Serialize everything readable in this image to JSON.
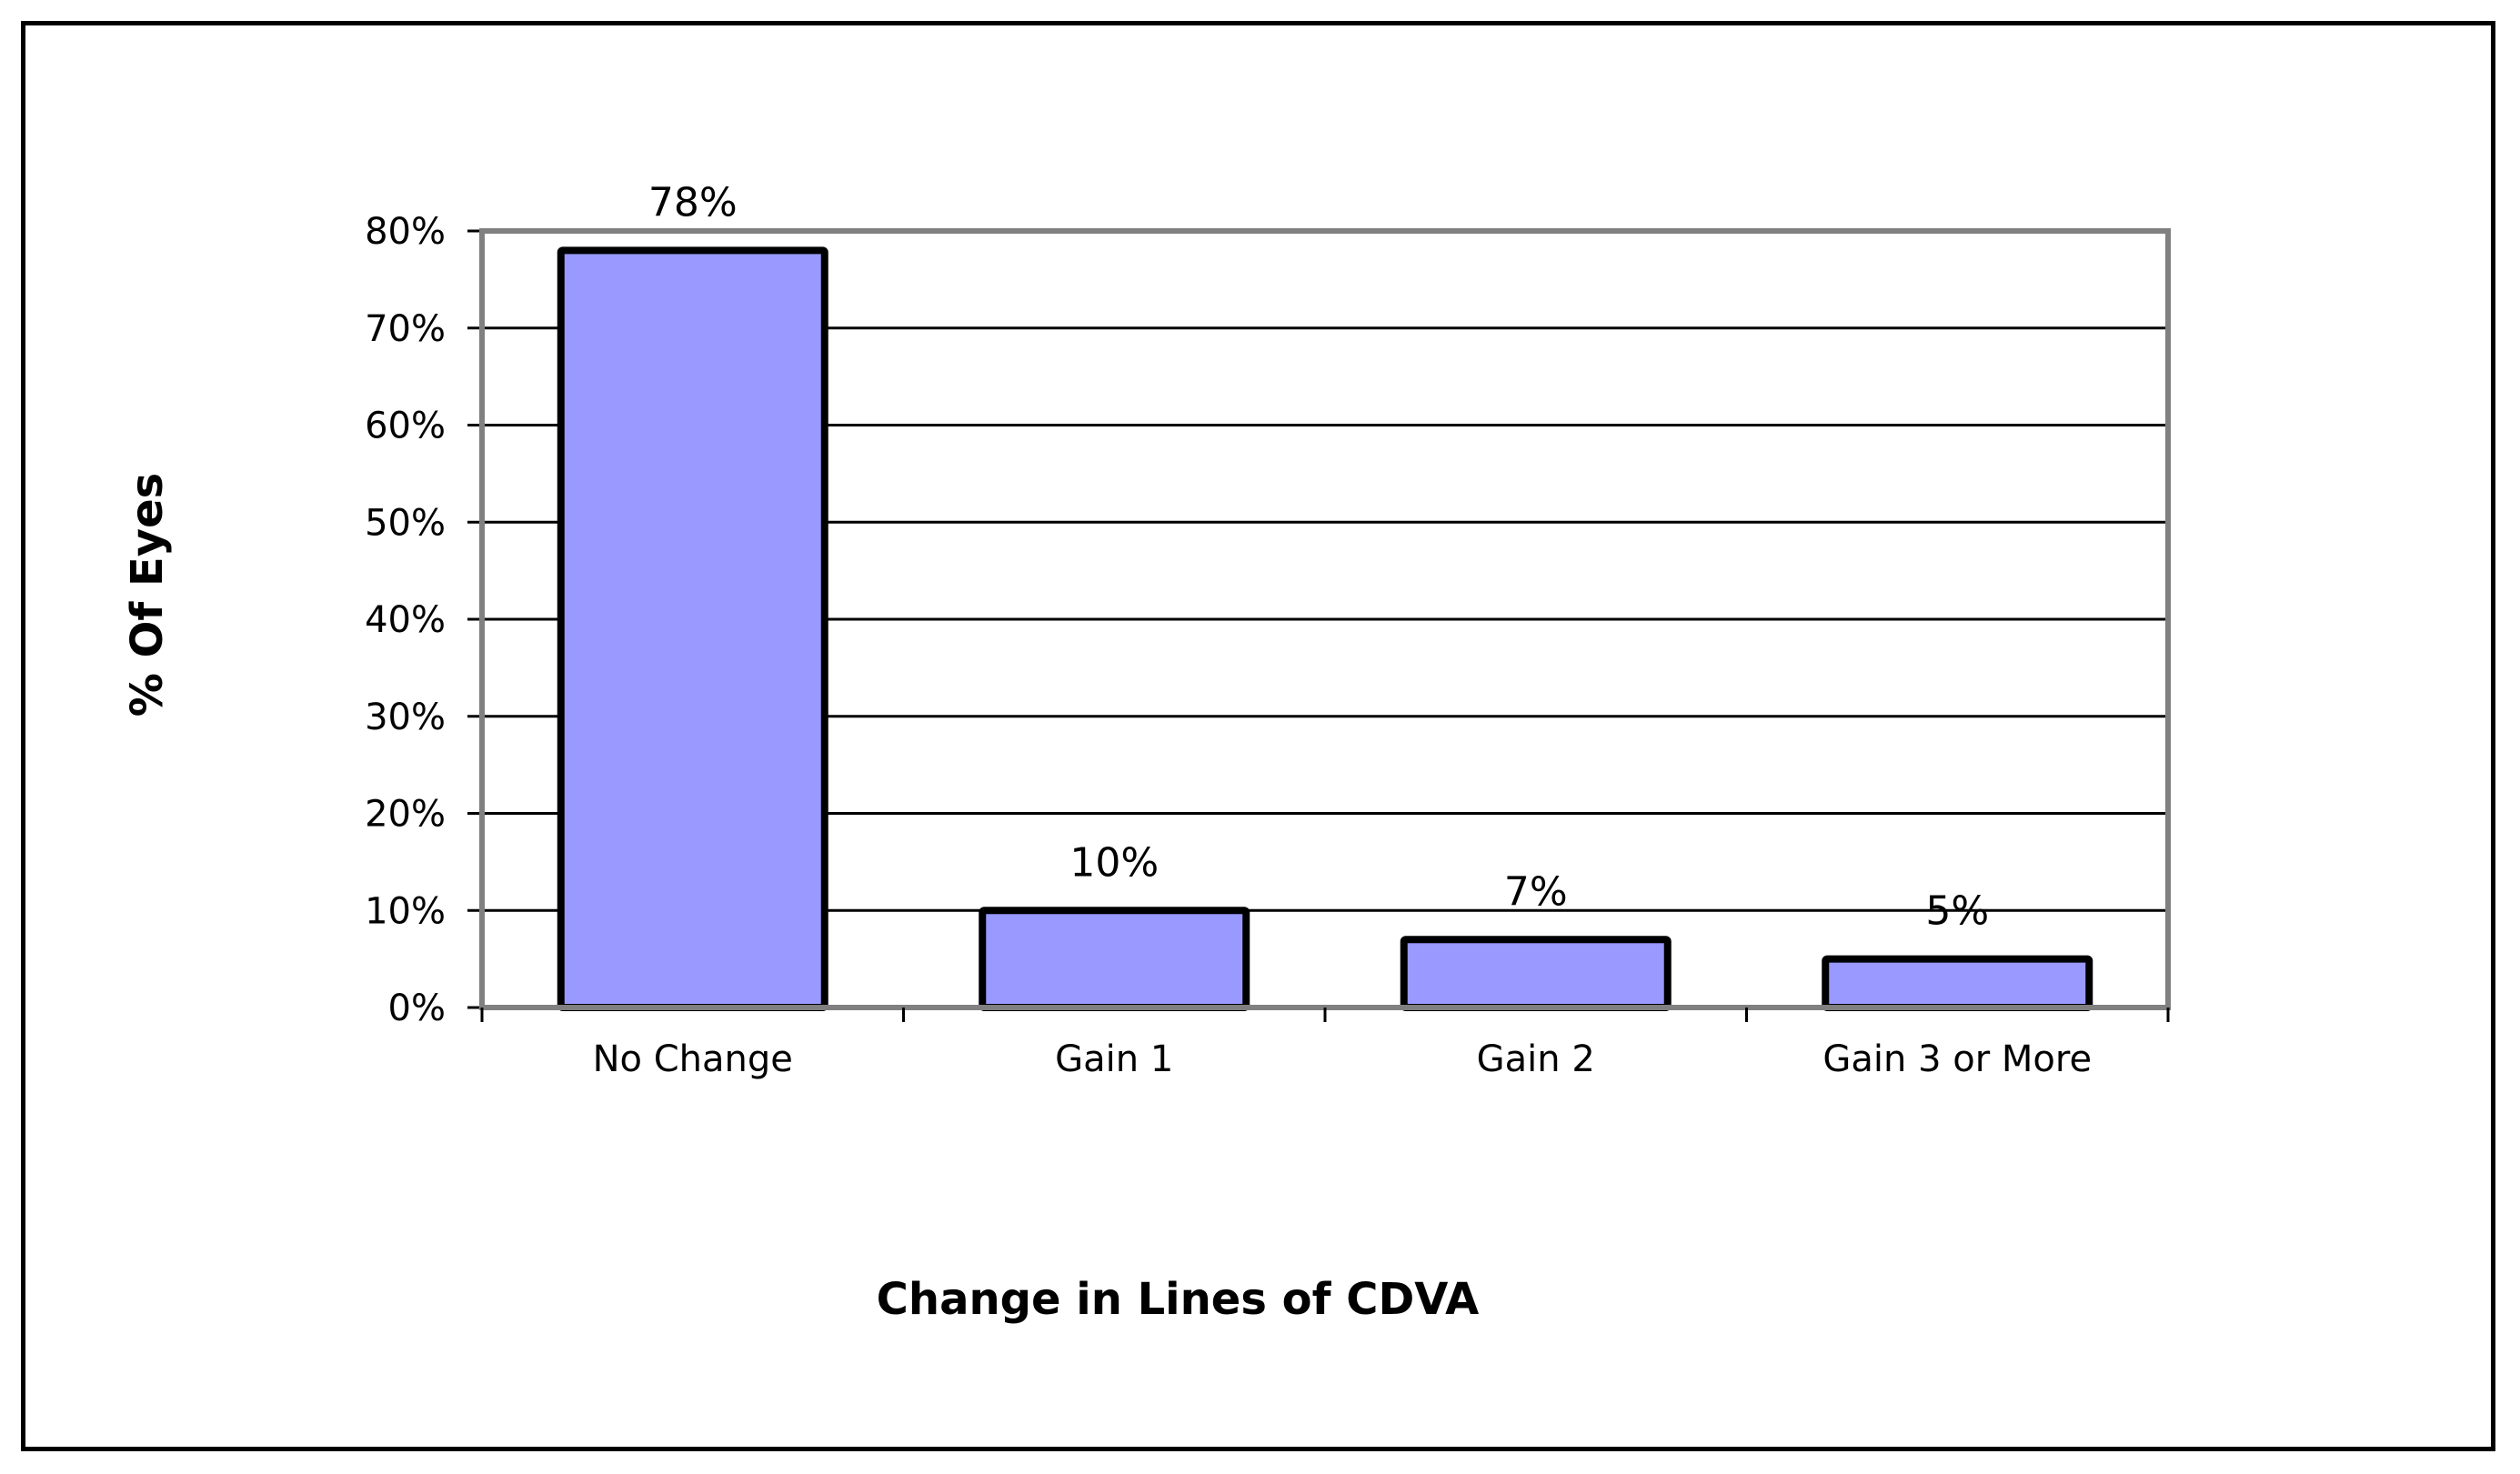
{
  "chart_data": {
    "type": "bar",
    "categories": [
      "No Change",
      "Gain 1",
      "Gain 2",
      "Gain 3 or More"
    ],
    "values": [
      78,
      10,
      7,
      5
    ],
    "data_labels": [
      "78%",
      "10%",
      "7%",
      "5%"
    ],
    "title": "",
    "xlabel": "Change in Lines of CDVA",
    "ylabel": "% Of Eyes",
    "ylim": [
      0,
      80
    ],
    "yticks": [
      0,
      10,
      20,
      30,
      40,
      50,
      60,
      70,
      80
    ],
    "ytick_labels": [
      "0%",
      "10%",
      "20%",
      "30%",
      "40%",
      "50%",
      "60%",
      "70%",
      "80%"
    ],
    "grid": true,
    "legend": "none",
    "colors": {
      "bar_fill": "#9999FF",
      "bar_edge": "#000000",
      "plot_border": "#808080",
      "gridline": "#000000"
    }
  }
}
